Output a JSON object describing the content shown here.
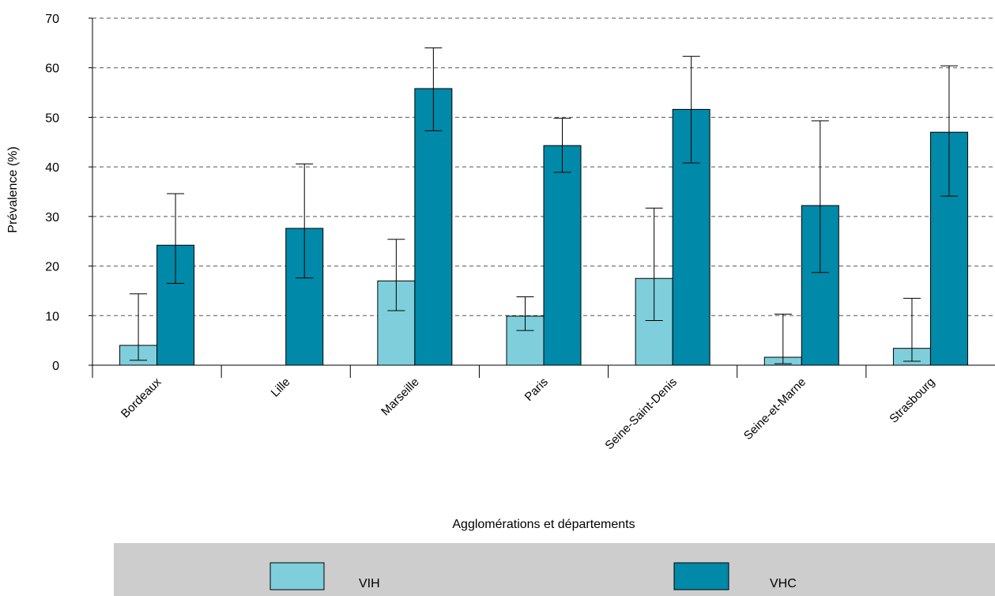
{
  "chart_data": {
    "type": "bar",
    "title": "",
    "xlabel": "Agglomérations et départements",
    "ylabel": "Prévalence (%)",
    "ylim": [
      0,
      70
    ],
    "yticks": [
      0,
      10,
      20,
      30,
      40,
      50,
      60,
      70
    ],
    "grid": "horizontal dashed",
    "legend_position": "bottom",
    "categories": [
      "Bordeaux",
      "Lille",
      "Marseille",
      "Paris",
      "Seine-Saint-Denis",
      "Seine-et-Marne",
      "Strasbourg"
    ],
    "series": [
      {
        "name": "VIH",
        "color": "#7ecfdb",
        "values": [
          4.0,
          null,
          17.0,
          9.9,
          17.5,
          1.6,
          3.4
        ],
        "error_low": [
          1.0,
          null,
          11.0,
          7.0,
          9.0,
          0.3,
          0.8
        ],
        "error_high": [
          14.4,
          null,
          25.4,
          13.8,
          31.7,
          10.3,
          13.5
        ]
      },
      {
        "name": "VHC",
        "color": "#0089a8",
        "values": [
          24.2,
          27.6,
          55.8,
          44.3,
          51.6,
          32.2,
          47.0
        ],
        "error_low": [
          16.5,
          17.6,
          47.3,
          38.9,
          40.8,
          18.7,
          34.1
        ],
        "error_high": [
          34.6,
          40.6,
          64.0,
          49.8,
          62.3,
          49.3,
          60.4
        ]
      }
    ]
  }
}
